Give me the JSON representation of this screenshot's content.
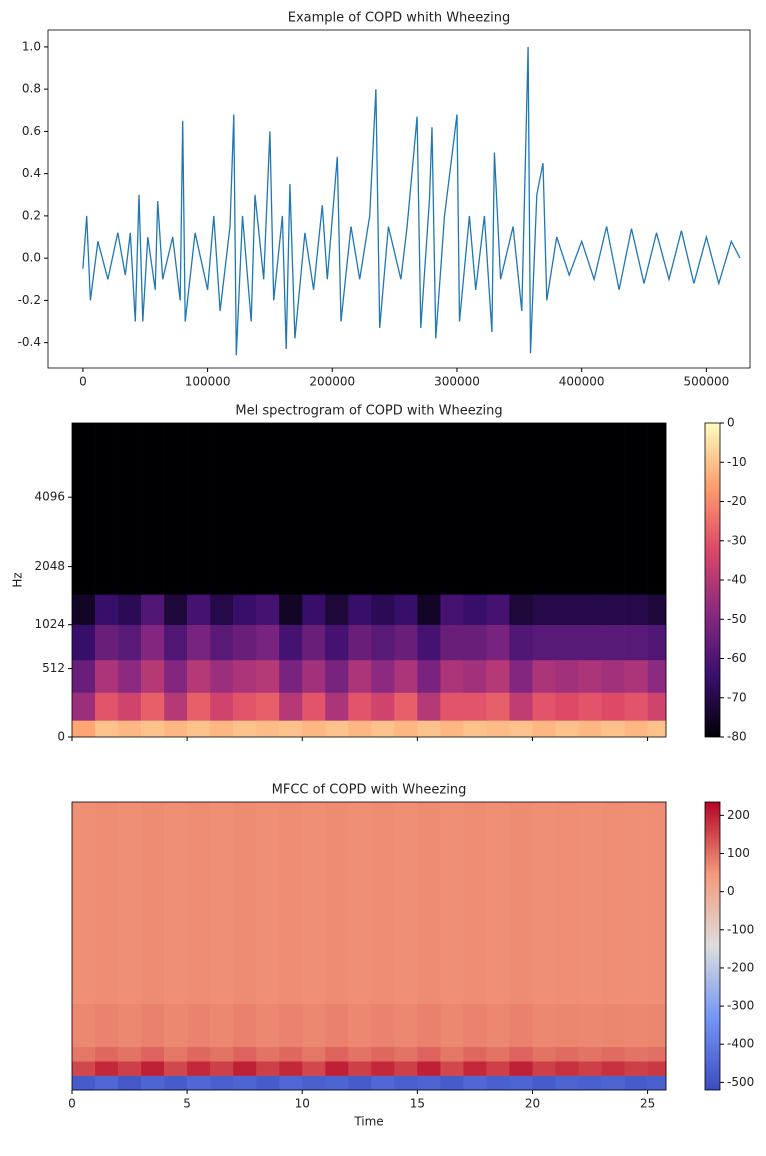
{
  "chart_data": [
    {
      "type": "line",
      "title": "Example of COPD whith Wheezing",
      "color": "#1f77b4",
      "x": [
        0,
        3000,
        6000,
        12000,
        20000,
        28000,
        34000,
        38000,
        42000,
        45000,
        48000,
        52000,
        58000,
        60000,
        64000,
        72000,
        78000,
        80000,
        82000,
        90000,
        100000,
        105000,
        110000,
        118000,
        121000,
        123000,
        128000,
        135000,
        138000,
        145000,
        150000,
        153000,
        160000,
        163000,
        166000,
        170000,
        178000,
        185000,
        192000,
        196000,
        204000,
        207000,
        215000,
        222000,
        230000,
        235000,
        238000,
        245000,
        255000,
        260000,
        268000,
        271000,
        278000,
        280000,
        283000,
        290000,
        300000,
        302000,
        310000,
        315000,
        322000,
        328000,
        330000,
        335000,
        345000,
        352000,
        357000,
        359000,
        364000,
        369000,
        372000,
        380000,
        390000,
        400000,
        410000,
        420000,
        430000,
        440000,
        450000,
        460000,
        470000,
        480000,
        490000,
        500000,
        510000,
        520000,
        527000
      ],
      "values": [
        -0.05,
        0.2,
        -0.2,
        0.08,
        -0.1,
        0.12,
        -0.08,
        0.12,
        -0.3,
        0.3,
        -0.3,
        0.1,
        -0.15,
        0.27,
        -0.1,
        0.1,
        -0.2,
        0.65,
        -0.3,
        0.12,
        -0.15,
        0.2,
        -0.25,
        0.15,
        0.68,
        -0.46,
        0.2,
        -0.3,
        0.3,
        -0.1,
        0.6,
        -0.2,
        0.2,
        -0.43,
        0.35,
        -0.38,
        0.12,
        -0.15,
        0.25,
        -0.1,
        0.48,
        -0.3,
        0.15,
        -0.1,
        0.2,
        0.8,
        -0.33,
        0.15,
        -0.1,
        0.15,
        0.67,
        -0.33,
        0.28,
        0.62,
        -0.38,
        0.2,
        0.68,
        -0.3,
        0.2,
        -0.15,
        0.2,
        -0.35,
        0.5,
        -0.1,
        0.15,
        -0.25,
        1.0,
        -0.45,
        0.3,
        0.45,
        -0.2,
        0.1,
        -0.08,
        0.08,
        -0.1,
        0.15,
        -0.15,
        0.14,
        -0.12,
        0.12,
        -0.1,
        0.13,
        -0.12,
        0.1,
        -0.12,
        0.08,
        0.0
      ],
      "xlim": [
        -28000,
        535000
      ],
      "ylim": [
        -0.52,
        1.08
      ],
      "xticks": [
        0,
        100000,
        200000,
        300000,
        400000,
        500000
      ],
      "yticks": [
        -0.4,
        -0.2,
        {
          "value": 0,
          "label": "0.0"
        },
        0.2,
        0.4,
        0.6,
        0.8,
        {
          "value": 1,
          "label": "1.0"
        }
      ]
    },
    {
      "type": "heatmap",
      "title": "Mel spectrogram of COPD with Wheezing",
      "ylabel": "Hz",
      "yscale": "mel",
      "cmap": "magma",
      "show_xtick_labels": false,
      "xlim": [
        0,
        25.8
      ],
      "ylim": [
        0,
        8000
      ],
      "xticks": [
        0,
        5,
        10,
        15,
        20,
        25
      ],
      "yticks": [
        0,
        512,
        1024,
        2048,
        4096
      ],
      "x_edges": [
        0,
        1,
        2,
        3,
        4,
        5,
        6,
        7,
        8,
        9,
        10,
        11,
        12,
        13,
        14,
        15,
        16,
        17,
        18,
        19,
        20,
        21,
        22,
        23,
        24,
        25,
        25.8
      ],
      "y_edges": [
        0,
        100,
        300,
        600,
        1024,
        1500,
        8000
      ],
      "z": [
        [
          -15,
          -10,
          -12,
          -10,
          -12,
          -10,
          -12,
          -10,
          -11,
          -10,
          -12,
          -10,
          -12,
          -10,
          -12,
          -10,
          -12,
          -10,
          -11,
          -10,
          -12,
          -10,
          -12,
          -10,
          -12,
          -10
        ],
        [
          -45,
          -30,
          -35,
          -28,
          -40,
          -28,
          -35,
          -30,
          -28,
          -40,
          -30,
          -42,
          -30,
          -35,
          -28,
          -40,
          -30,
          -30,
          -28,
          -38,
          -30,
          -32,
          -30,
          -32,
          -30,
          -35
        ],
        [
          -55,
          -42,
          -48,
          -40,
          -50,
          -40,
          -45,
          -42,
          -40,
          -52,
          -44,
          -52,
          -42,
          -48,
          -42,
          -52,
          -42,
          -44,
          -40,
          -50,
          -42,
          -44,
          -42,
          -44,
          -42,
          -48
        ],
        [
          -65,
          -55,
          -58,
          -50,
          -60,
          -52,
          -58,
          -55,
          -52,
          -62,
          -55,
          -62,
          -55,
          -58,
          -55,
          -62,
          -55,
          -55,
          -52,
          -60,
          -58,
          -58,
          -58,
          -58,
          -58,
          -60
        ],
        [
          -75,
          -65,
          -68,
          -60,
          -72,
          -62,
          -70,
          -65,
          -62,
          -75,
          -65,
          -72,
          -65,
          -68,
          -65,
          -75,
          -62,
          -65,
          -62,
          -72,
          -70,
          -70,
          -70,
          -70,
          -70,
          -72
        ],
        [
          -80,
          -80,
          -80,
          -80,
          -80,
          -80,
          -80,
          -80,
          -80,
          -80,
          -80,
          -80,
          -80,
          -80,
          -80,
          -80,
          -80,
          -80,
          -80,
          -80,
          -80,
          -80,
          -80,
          -80,
          -80,
          -80
        ]
      ],
      "zlim": [
        -80,
        0
      ],
      "zticks": [
        0,
        -10,
        -20,
        -30,
        -40,
        -50,
        -60,
        -70,
        -80
      ]
    },
    {
      "type": "heatmap",
      "title": "MFCC of COPD with Wheezing",
      "xlabel": "Time",
      "cmap": "coolwarm",
      "show_xtick_labels": true,
      "xlim": [
        0,
        25.8
      ],
      "ylim": [
        0,
        20
      ],
      "xticks": [
        0,
        5,
        10,
        15,
        20,
        25
      ],
      "x_edges": [
        0,
        1,
        2,
        3,
        4,
        5,
        6,
        7,
        8,
        9,
        10,
        11,
        12,
        13,
        14,
        15,
        16,
        17,
        18,
        19,
        20,
        21,
        22,
        23,
        24,
        25,
        25.8
      ],
      "y_edges": [
        0,
        1,
        2,
        3,
        6,
        20
      ],
      "z": [
        [
          -480,
          -450,
          -490,
          -460,
          -480,
          -450,
          -470,
          -460,
          -480,
          -450,
          -470,
          -460,
          -480,
          -450,
          -470,
          -460,
          -480,
          -450,
          -470,
          -460,
          -480,
          -460,
          -470,
          -460,
          -480,
          -470
        ],
        [
          150,
          190,
          160,
          200,
          150,
          190,
          160,
          200,
          160,
          190,
          150,
          200,
          160,
          190,
          160,
          200,
          150,
          190,
          160,
          200,
          160,
          180,
          160,
          180,
          160,
          170
        ],
        [
          90,
          110,
          95,
          115,
          90,
          110,
          95,
          115,
          95,
          110,
          90,
          115,
          95,
          110,
          95,
          115,
          90,
          110,
          95,
          115,
          95,
          105,
          95,
          105,
          95,
          100
        ],
        [
          70,
          75,
          70,
          78,
          70,
          75,
          70,
          78,
          70,
          75,
          70,
          78,
          70,
          75,
          70,
          78,
          70,
          75,
          70,
          78,
          70,
          72,
          70,
          72,
          70,
          72
        ],
        [
          60,
          62,
          60,
          64,
          60,
          62,
          60,
          64,
          60,
          62,
          60,
          64,
          60,
          62,
          60,
          64,
          60,
          62,
          60,
          64,
          60,
          61,
          60,
          61,
          60,
          61
        ]
      ],
      "zlim": [
        -520,
        235
      ],
      "zticks": [
        200,
        100,
        0,
        -100,
        -200,
        -300,
        -400,
        -500
      ]
    }
  ]
}
